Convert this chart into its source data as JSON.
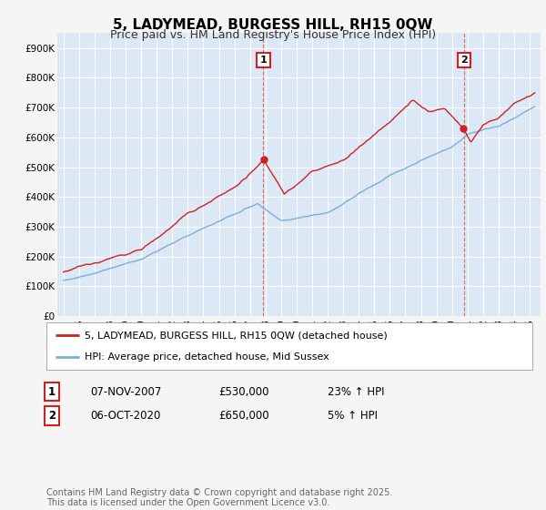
{
  "title": "5, LADYMEAD, BURGESS HILL, RH15 0QW",
  "subtitle": "Price paid vs. HM Land Registry's House Price Index (HPI)",
  "ylim": [
    0,
    950000
  ],
  "yticks": [
    0,
    100000,
    200000,
    300000,
    400000,
    500000,
    600000,
    700000,
    800000,
    900000
  ],
  "ytick_labels": [
    "£0",
    "£100K",
    "£200K",
    "£300K",
    "£400K",
    "£500K",
    "£600K",
    "£700K",
    "£800K",
    "£900K"
  ],
  "hpi_color": "#7bafd4",
  "price_color": "#cc2222",
  "vline_color": "#dd6666",
  "transaction1_date": 2007.86,
  "transaction1_price": 530000,
  "transaction1_label": "1",
  "transaction2_date": 2020.77,
  "transaction2_price": 650000,
  "transaction2_label": "2",
  "legend_line1": "5, LADYMEAD, BURGESS HILL, RH15 0QW (detached house)",
  "legend_line2": "HPI: Average price, detached house, Mid Sussex",
  "table_row1": [
    "1",
    "07-NOV-2007",
    "£530,000",
    "23% ↑ HPI"
  ],
  "table_row2": [
    "2",
    "06-OCT-2020",
    "£650,000",
    "5% ↑ HPI"
  ],
  "footnote": "Contains HM Land Registry data © Crown copyright and database right 2025.\nThis data is licensed under the Open Government Licence v3.0.",
  "background_color": "#f5f5f5",
  "plot_bg_color": "#dce8f5",
  "grid_color": "#ffffff",
  "title_fontsize": 11,
  "subtitle_fontsize": 9,
  "tick_fontsize": 7.5,
  "legend_fontsize": 8,
  "table_fontsize": 8.5,
  "footnote_fontsize": 7
}
